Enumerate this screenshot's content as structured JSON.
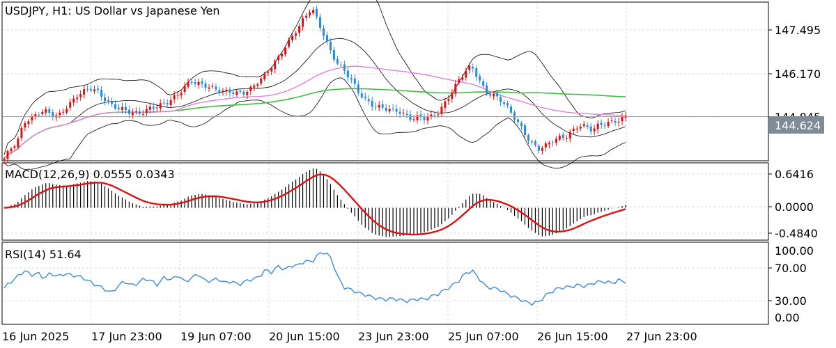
{
  "chart_data": [
    {
      "type": "candlestick",
      "panel": "price",
      "title": "USDJPY, H1:  US Dollar vs Japanese Yen",
      "y_ticks": [
        "147.495",
        "146.170",
        "144.845"
      ],
      "current_price": "144.624",
      "ylim": [
        143.25,
        148.2
      ],
      "close_series": [
        143.3,
        143.62,
        143.85,
        144.45,
        144.55,
        144.72,
        144.8,
        144.73,
        144.6,
        144.85,
        145.05,
        145.3,
        145.42,
        145.52,
        145.4,
        145.18,
        144.98,
        144.9,
        144.82,
        144.75,
        144.7,
        144.78,
        144.9,
        144.95,
        145.02,
        145.15,
        145.32,
        145.55,
        145.73,
        145.66,
        145.6,
        145.52,
        145.45,
        145.4,
        145.4,
        145.35,
        145.38,
        145.5,
        145.72,
        145.92,
        146.2,
        146.45,
        146.8,
        147.1,
        147.42,
        147.75,
        148.05,
        147.6,
        147.1,
        146.6,
        146.25,
        146.05,
        145.75,
        145.4,
        145.15,
        145.0,
        144.92,
        144.88,
        144.82,
        144.8,
        144.65,
        144.55,
        144.6,
        144.58,
        144.62,
        144.75,
        145.05,
        145.4,
        145.75,
        146.05,
        146.2,
        145.8,
        145.4,
        145.3,
        145.2,
        145.0,
        144.7,
        144.4,
        144.05,
        143.75,
        143.6,
        143.7,
        143.85,
        143.95,
        143.98,
        144.15,
        144.35,
        144.3,
        144.2,
        144.35,
        144.4,
        144.45,
        144.5,
        144.62
      ]
    },
    {
      "type": "histogram+line",
      "panel": "macd",
      "title": "MACD(12,26,9) 0.0555 0.0343",
      "y_ticks": [
        "0.6416",
        "0.0000",
        "-0.4840"
      ],
      "ylim": [
        -0.5,
        0.7
      ]
    },
    {
      "type": "line",
      "panel": "rsi",
      "title": "RSI(14) 51.64",
      "y_ticks": [
        "100.00",
        "70.00",
        "30.00",
        "0.00"
      ],
      "levels": [
        70,
        30
      ],
      "ylim": [
        0,
        100
      ],
      "values": [
        44,
        52,
        58,
        66,
        60,
        63,
        56,
        63,
        58,
        62,
        60,
        59,
        56,
        51,
        47,
        43,
        38,
        46,
        53,
        47,
        50,
        56,
        53,
        48,
        58,
        54,
        60,
        52,
        56,
        62,
        53,
        53,
        56,
        50,
        53,
        48,
        52,
        55,
        57,
        66,
        64,
        71,
        67,
        72,
        72,
        78,
        76,
        86,
        89,
        80,
        56,
        44,
        42,
        38,
        36,
        33,
        31,
        30,
        31,
        30,
        28,
        29,
        31,
        30,
        34,
        37,
        42,
        47,
        53,
        62,
        66,
        57,
        46,
        44,
        43,
        38,
        34,
        31,
        27,
        25,
        27,
        35,
        40,
        44,
        45,
        46,
        48,
        46,
        50,
        52,
        52,
        50,
        54,
        51.6
      ]
    }
  ],
  "x_ticks": [
    "16 Jun 2025",
    "17 Jun 23:00",
    "19 Jun 07:00",
    "20 Jun 15:00",
    "23 Jun 23:00",
    "25 Jun 07:00",
    "26 Jun 15:00",
    "27 Jun 23:00"
  ],
  "colors": {
    "bull": "#e01010",
    "bear": "#2a8ae0",
    "bollinger": "#000000",
    "ma_slow": "#3cbf3c",
    "ma_fast": "#e080d8",
    "macd_signal": "#e01010",
    "macd_hist": "#000000",
    "rsi": "#3a8ad8",
    "price_badge": "#7f8c98"
  }
}
